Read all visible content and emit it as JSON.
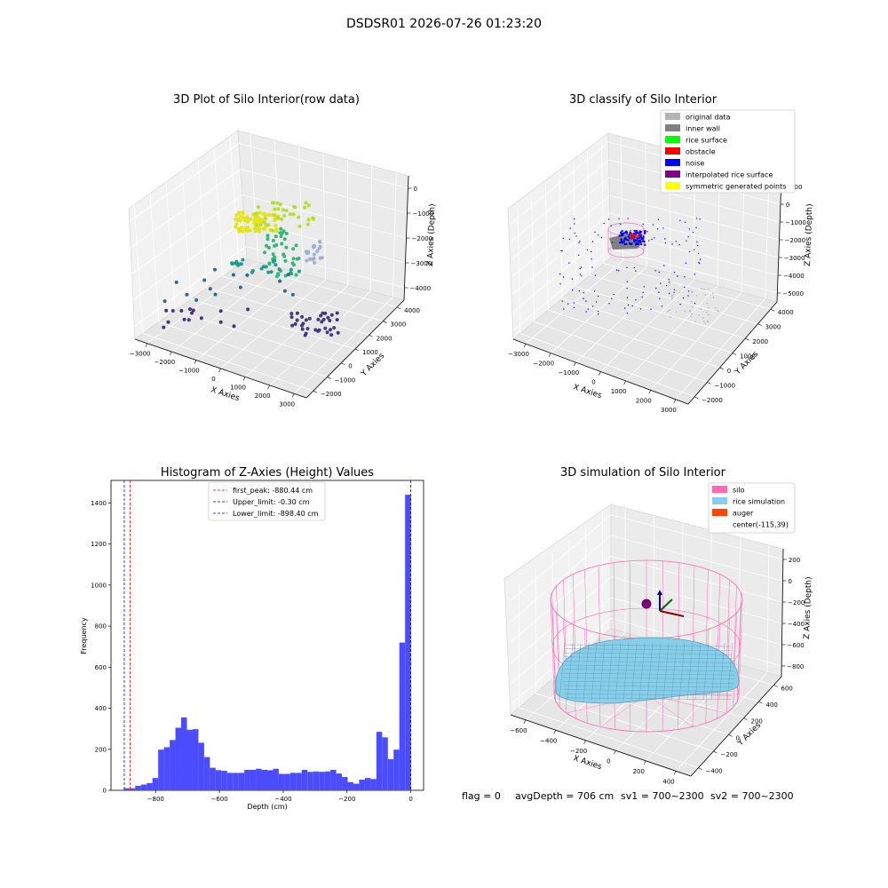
{
  "figure": {
    "suptitle": "DSDSR01 2026-07-26 01:23:20",
    "status": {
      "flag": "flag = 0",
      "avg_depth": "avgDepth = 706 cm",
      "sv1": "sv1 = 700~2300",
      "sv2": "sv2 = 700~2300"
    }
  },
  "panels": {
    "raw": {
      "title": "3D Plot of Silo Interior(row data)",
      "x_label": "X Axies",
      "y_label": "Y Axies",
      "z_label": "Z Axies (Depth)",
      "x_ticks": [
        "−3000",
        "−2000",
        "−1000",
        "0",
        "1000",
        "2000",
        "3000"
      ],
      "y_ticks": [
        "−2000",
        "−1000",
        "0",
        "1000",
        "2000",
        "3000",
        "4000"
      ],
      "z_ticks": [
        "0",
        "−1000",
        "−2000",
        "−3000",
        "−4000"
      ]
    },
    "classify": {
      "title": "3D classify of Silo Interior",
      "x_label": "X Axies",
      "y_label": "Y Axies",
      "z_label": "Z Axies (Depth)",
      "x_ticks": [
        "−3000",
        "−2000",
        "−1000",
        "0",
        "1000",
        "2000",
        "3000"
      ],
      "y_ticks": [
        "−2000",
        "−1000",
        "0",
        "1000",
        "2000",
        "3000",
        "4000"
      ],
      "z_ticks": [
        "1000",
        "0",
        "−1000",
        "−2000",
        "−3000",
        "−4000",
        "−5000"
      ],
      "legend": [
        {
          "label": "original data",
          "color": "#b3b3b3"
        },
        {
          "label": "inner wall",
          "color": "#808080"
        },
        {
          "label": "rice surface",
          "color": "#00ff00"
        },
        {
          "label": "obstacle",
          "color": "#ff0000"
        },
        {
          "label": "noise",
          "color": "#0000ff"
        },
        {
          "label": "interpolated rice surface",
          "color": "#800080"
        },
        {
          "label": "symmetric generated points",
          "color": "#ffff00"
        }
      ]
    },
    "simulation": {
      "title": "3D simulation of Silo Interior",
      "x_label": "X Axies",
      "y_label": "Y Axies",
      "z_label": "Z Axies (Depth)",
      "x_ticks": [
        "−600",
        "−400",
        "−200",
        "0",
        "200",
        "400"
      ],
      "y_ticks": [
        "−400",
        "−200",
        "0",
        "200",
        "400",
        "600"
      ],
      "z_ticks": [
        "200",
        "0",
        "−200",
        "−400",
        "−600",
        "−800"
      ],
      "legend": [
        {
          "label": "silo",
          "color": "#ff69b4"
        },
        {
          "label": "rice simulation",
          "color": "#87ceeb"
        },
        {
          "label": "auger",
          "color": "#ff4500"
        },
        {
          "label": "center(-115,39)",
          "color": ""
        }
      ]
    }
  },
  "chart_data": [
    {
      "type": "bar",
      "title": "Histogram of Z-Axies (Height) Values",
      "xlabel": "Depth (cm)",
      "ylabel": "Frequency",
      "xlim": [
        -940,
        40
      ],
      "ylim": [
        0,
        1510
      ],
      "x_ticks": [
        -800,
        -600,
        -400,
        -200,
        0
      ],
      "y_ticks": [
        0,
        200,
        400,
        600,
        800,
        1000,
        1200,
        1400
      ],
      "bin_width": 18,
      "bin_start": -900,
      "values": [
        10,
        10,
        22,
        28,
        35,
        60,
        198,
        210,
        245,
        305,
        355,
        295,
        298,
        232,
        162,
        110,
        98,
        95,
        85,
        85,
        85,
        100,
        100,
        105,
        100,
        98,
        105,
        80,
        80,
        85,
        85,
        100,
        90,
        92,
        90,
        92,
        100,
        82,
        65,
        40,
        32,
        52,
        60,
        55,
        285,
        258,
        152,
        198,
        720,
        1440
      ],
      "bar_color": "#4b4bff",
      "lines": [
        {
          "label": "first_peak: -880.44 cm",
          "x": -880.44,
          "color": "#ff0000"
        },
        {
          "label": "Upper_limit: -0.30 cm",
          "x": -0.3,
          "color": "#00008b"
        },
        {
          "label": "Lower_limit: -898.40 cm",
          "x": -898.4,
          "color": "#0000ff"
        }
      ],
      "legend_position": "upper center"
    }
  ]
}
